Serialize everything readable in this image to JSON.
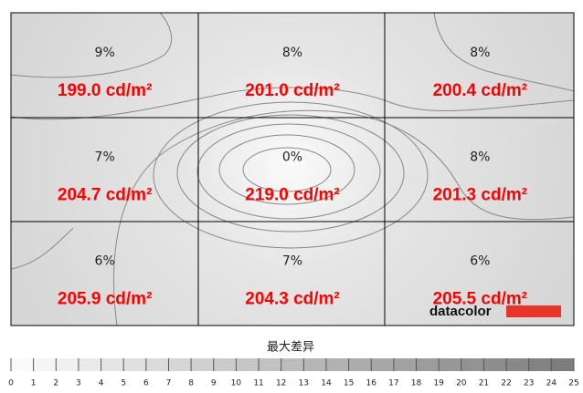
{
  "chart_data": {
    "type": "uniformity-grid",
    "rows": 3,
    "cols": 3,
    "cells": [
      {
        "deviation": 9,
        "deviation_label": "9%",
        "luminance": 199.0,
        "luminance_label": "199.0 cd/m²"
      },
      {
        "deviation": 8,
        "deviation_label": "8%",
        "luminance": 201.0,
        "luminance_label": "201.0 cd/m²"
      },
      {
        "deviation": 8,
        "deviation_label": "8%",
        "luminance": 200.4,
        "luminance_label": "200.4 cd/m²"
      },
      {
        "deviation": 7,
        "deviation_label": "7%",
        "luminance": 204.7,
        "luminance_label": "204.7 cd/m²"
      },
      {
        "deviation": 0,
        "deviation_label": "0%",
        "luminance": 219.0,
        "luminance_label": "219.0 cd/m²"
      },
      {
        "deviation": 8,
        "deviation_label": "8%",
        "luminance": 201.3,
        "luminance_label": "201.3 cd/m²"
      },
      {
        "deviation": 6,
        "deviation_label": "6%",
        "luminance": 205.9,
        "luminance_label": "205.9 cd/m²"
      },
      {
        "deviation": 7,
        "deviation_label": "7%",
        "luminance": 204.3,
        "luminance_label": "204.3 cd/m²"
      },
      {
        "deviation": 6,
        "deviation_label": "6%",
        "luminance": 205.5,
        "luminance_label": "205.5 cd/m²"
      }
    ],
    "label_color": "#ff0000",
    "logo": "datacolor",
    "scale_title": "最大差异",
    "scale_lim": [
      0,
      25
    ],
    "scale_ticks": [
      0,
      1,
      2,
      3,
      4,
      5,
      6,
      7,
      8,
      9,
      10,
      11,
      12,
      13,
      14,
      15,
      16,
      17,
      18,
      19,
      20,
      21,
      22,
      23,
      24,
      25
    ]
  }
}
